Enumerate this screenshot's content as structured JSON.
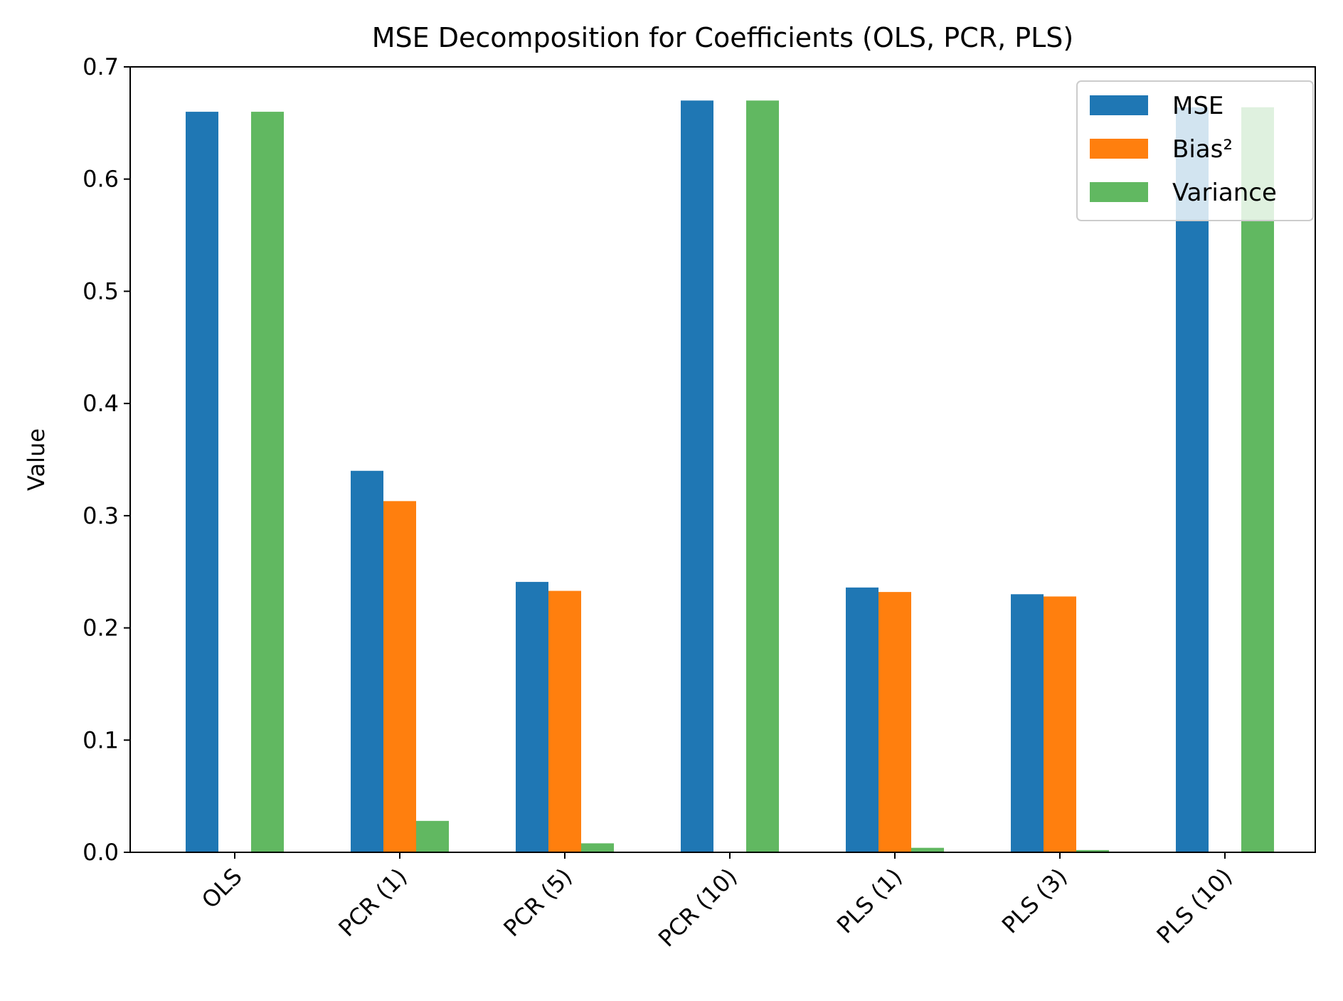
{
  "chart_data": {
    "type": "bar",
    "title": "MSE Decomposition for Coefficients (OLS, PCR, PLS)",
    "xlabel": "",
    "ylabel": "Value",
    "ylim": [
      0,
      0.7
    ],
    "yticks": [
      "0.0",
      "0.1",
      "0.2",
      "0.3",
      "0.4",
      "0.5",
      "0.6",
      "0.7"
    ],
    "categories": [
      "OLS",
      "PCR (1)",
      "PCR (5)",
      "PCR (10)",
      "PLS (1)",
      "PLS (3)",
      "PLS (10)"
    ],
    "series": [
      {
        "name": "MSE",
        "color": "#1f77b4",
        "values": [
          0.66,
          0.34,
          0.241,
          0.67,
          0.236,
          0.23,
          0.664
        ]
      },
      {
        "name": "Bias²",
        "color": "#ff7f0e",
        "values": [
          0.0,
          0.313,
          0.233,
          0.0,
          0.232,
          0.228,
          0.0
        ]
      },
      {
        "name": "Variance",
        "color": "#2ca02c",
        "opacity": 0.75,
        "values": [
          0.66,
          0.028,
          0.008,
          0.67,
          0.004,
          0.002,
          0.664
        ]
      }
    ],
    "legend": {
      "position": "upper right"
    },
    "grid": false
  }
}
